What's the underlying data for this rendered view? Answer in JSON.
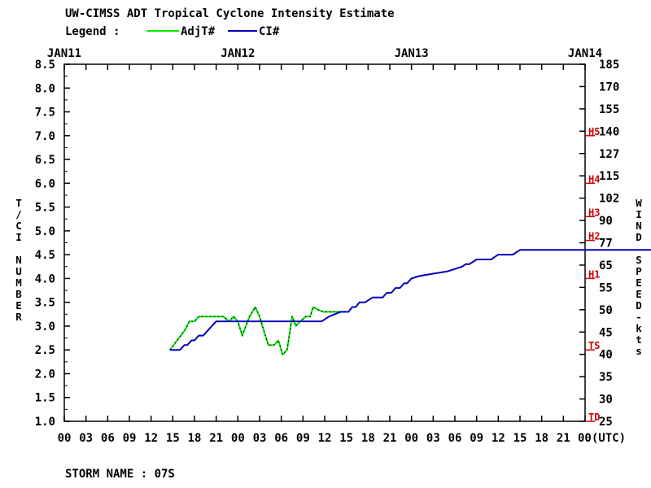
{
  "chart_data": {
    "type": "line",
    "title": "UW-CIMSS ADT Tropical Cyclone Intensity Estimate",
    "legend_label": "Legend :",
    "legend_placement": "top-left",
    "ylabel_left": "T/CI NUMBER",
    "ylabel_right": "WIND SPEED-kts",
    "date_labels": [
      "JAN11",
      "JAN12",
      "JAN13",
      "JAN14"
    ],
    "hour_tick_labels": [
      "00",
      "03",
      "06",
      "09",
      "12",
      "15",
      "18",
      "21",
      "00",
      "03",
      "06",
      "09",
      "12",
      "15",
      "18",
      "21",
      "00",
      "03",
      "06",
      "09",
      "12",
      "15",
      "18",
      "21",
      "00(UTC)"
    ],
    "left_ticks": [
      "1.0",
      "1.5",
      "2.0",
      "2.5",
      "3.0",
      "3.5",
      "4.0",
      "4.5",
      "5.0",
      "5.5",
      "6.0",
      "6.5",
      "7.0",
      "7.5",
      "8.0",
      "8.5"
    ],
    "right_ticks": [
      "25",
      "30",
      "35",
      "40",
      "45",
      "50",
      "55",
      "65",
      "77",
      "90",
      "102",
      "115",
      "127",
      "140",
      "155",
      "170",
      "185"
    ],
    "ylim": [
      1.0,
      8.5
    ],
    "xlim_hours": [
      0,
      72
    ],
    "x_unit": "hours from JAN11 00 UTC",
    "grid": false,
    "category_marks": [
      {
        "label": "TD",
        "t": 1.0
      },
      {
        "label": "TS",
        "t": 2.5
      },
      {
        "label": "H1",
        "t": 4.0
      },
      {
        "label": "H2",
        "t": 4.8
      },
      {
        "label": "H3",
        "t": 5.3
      },
      {
        "label": "H4",
        "t": 6.0
      },
      {
        "label": "H5",
        "t": 7.0
      }
    ],
    "series": [
      {
        "name": "AdjT#",
        "color": "#00ee00",
        "x": [
          14.6,
          15.6,
          16.6,
          17.3,
          18.0,
          18.6,
          19.3,
          20.0,
          21.0,
          22.0,
          22.8,
          23.4,
          24.0,
          24.6,
          25.6,
          26.4,
          27.0,
          27.6,
          28.2,
          29.0,
          29.6,
          30.2,
          30.8,
          31.5,
          32.0,
          32.6,
          33.4,
          34.0,
          34.4,
          35.0,
          35.8,
          36.5,
          37.0,
          37.6,
          38.2,
          38.6,
          39.0
        ],
        "y": [
          2.5,
          2.7,
          2.9,
          3.1,
          3.1,
          3.2,
          3.2,
          3.2,
          3.2,
          3.2,
          3.1,
          3.2,
          3.1,
          2.8,
          3.2,
          3.4,
          3.2,
          2.9,
          2.6,
          2.6,
          2.7,
          2.4,
          2.5,
          3.2,
          3.0,
          3.1,
          3.2,
          3.2,
          3.4,
          3.35,
          3.3,
          3.3,
          3.3,
          3.3,
          3.3,
          3.3,
          3.3
        ]
      },
      {
        "name": "CI#",
        "color": "#0000bb",
        "x": [
          14.6,
          15.5,
          16.0,
          16.6,
          17.0,
          17.6,
          18.0,
          18.6,
          19.2,
          19.8,
          20.4,
          21.0,
          22.0,
          24.0,
          27.0,
          30.0,
          33.0,
          34.8,
          35.6,
          36.6,
          38.2,
          38.8,
          39.3,
          39.8,
          40.3,
          40.8,
          41.6,
          42.6,
          43.3,
          44.0,
          44.6,
          45.2,
          45.8,
          46.4,
          47.0,
          47.4,
          48.0,
          49.0,
          51.0,
          53.0,
          54.0,
          55.0,
          55.5,
          56.0,
          57.0,
          58.0,
          58.6,
          59.0,
          60.0,
          61.0,
          61.7,
          62.0,
          63.0,
          64.0,
          65.0,
          66.0,
          67.0,
          68.0,
          68.6,
          69.0,
          70.0,
          71.0,
          72.0,
          73.0,
          74.0,
          75.0,
          76.0,
          77.0,
          78.0,
          79.0,
          80.0,
          81.0,
          82.0,
          83.0,
          84.0,
          85.0,
          86.0,
          87.0,
          88.0,
          89.0,
          90.0,
          91.0,
          92.0,
          93.0,
          94.0,
          95.0,
          96.0,
          97.0,
          98.0,
          99.0,
          100.0
        ],
        "y": [
          2.5,
          2.5,
          2.5,
          2.6,
          2.6,
          2.7,
          2.7,
          2.8,
          2.8,
          2.9,
          3.0,
          3.1,
          3.1,
          3.1,
          3.1,
          3.1,
          3.1,
          3.1,
          3.1,
          3.2,
          3.3,
          3.3,
          3.3,
          3.4,
          3.4,
          3.5,
          3.5,
          3.6,
          3.6,
          3.6,
          3.7,
          3.7,
          3.8,
          3.8,
          3.9,
          3.9,
          4.0,
          4.05,
          4.1,
          4.15,
          4.2,
          4.25,
          4.3,
          4.3,
          4.4,
          4.4,
          4.4,
          4.4,
          4.5,
          4.5,
          4.5,
          4.5,
          4.6,
          4.6,
          4.6,
          4.6,
          4.6,
          4.6,
          4.6,
          4.6,
          4.6,
          4.6,
          4.6,
          4.6,
          4.6,
          4.6,
          4.6,
          4.6,
          4.6,
          4.6,
          4.6,
          4.6,
          4.6,
          4.6,
          4.6,
          4.6,
          4.6,
          4.6,
          4.6,
          4.6,
          4.6,
          4.6,
          4.6,
          4.6,
          4.6,
          4.6,
          4.6,
          4.6,
          4.6,
          4.6,
          4.6
        ]
      }
    ]
  },
  "footer": {
    "storm_name_label": "STORM NAME : 07S"
  }
}
